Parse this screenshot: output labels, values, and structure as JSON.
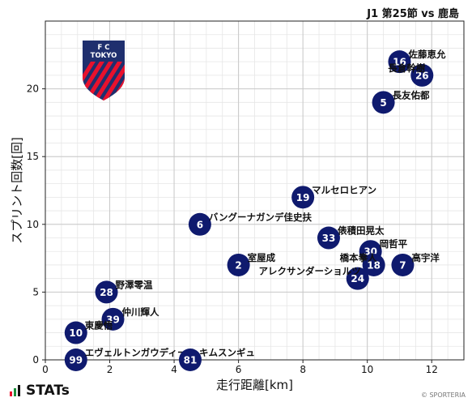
{
  "header": {
    "title": "J1 第25節 vs 鹿島"
  },
  "brand": {
    "name": "STATs",
    "credit": "© SPORTERIA"
  },
  "logo": {
    "letters_top": "F    C",
    "text": "TOKYO",
    "colors": [
      "#1f2f6e",
      "#e8112d"
    ]
  },
  "chart_data": {
    "type": "scatter",
    "xlabel": "走行距離[km]",
    "ylabel": "スプリント回数[回]",
    "xlim": [
      0,
      13
    ],
    "ylim": [
      0,
      25
    ],
    "xticks": [
      0,
      2,
      4,
      6,
      8,
      10,
      12
    ],
    "yticks": [
      0,
      5,
      10,
      15,
      20
    ],
    "grid": true,
    "marker_color": "#0f1a6e",
    "points": [
      {
        "number": "16",
        "name": "佐藤恵允",
        "x": 11.0,
        "y": 22,
        "label_pos": "right"
      },
      {
        "number": "26",
        "name": "長倉幹樹",
        "x": 11.7,
        "y": 21,
        "label_pos": "left"
      },
      {
        "number": "5",
        "name": "長友佑都",
        "x": 10.5,
        "y": 19,
        "label_pos": "right"
      },
      {
        "number": "19",
        "name": "マルセロヒアン",
        "x": 8.0,
        "y": 12,
        "label_pos": "right"
      },
      {
        "number": "6",
        "name": "バングーナガンデ佳史扶",
        "x": 4.8,
        "y": 10,
        "label_pos": "right"
      },
      {
        "number": "33",
        "name": "俵積田晃太",
        "x": 8.8,
        "y": 9,
        "label_pos": "right"
      },
      {
        "number": "30",
        "name": "岡哲平",
        "x": 10.1,
        "y": 8,
        "label_pos": "right"
      },
      {
        "number": "2",
        "name": "室屋成",
        "x": 6.0,
        "y": 7,
        "label_pos": "right"
      },
      {
        "number": "18",
        "name": "橋本拳人",
        "x": 10.2,
        "y": 7,
        "label_pos": "left"
      },
      {
        "number": "7",
        "name": "高宇洋",
        "x": 11.1,
        "y": 7,
        "label_pos": "right"
      },
      {
        "number": "24",
        "name": "アレクサンダーショルツ",
        "x": 9.7,
        "y": 6,
        "label_pos": "left"
      },
      {
        "number": "28",
        "name": "野澤零温",
        "x": 1.9,
        "y": 5,
        "label_pos": "right"
      },
      {
        "number": "39",
        "name": "仲川輝人",
        "x": 2.1,
        "y": 3,
        "label_pos": "right"
      },
      {
        "number": "10",
        "name": "東慶悟",
        "x": 0.95,
        "y": 2,
        "label_pos": "right"
      },
      {
        "number": "99",
        "name": "エヴェルトンガウディーノ",
        "x": 0.95,
        "y": 0,
        "label_pos": "right"
      },
      {
        "number": "81",
        "name": "キムスンギュ",
        "x": 4.5,
        "y": 0,
        "label_pos": "right"
      }
    ]
  }
}
